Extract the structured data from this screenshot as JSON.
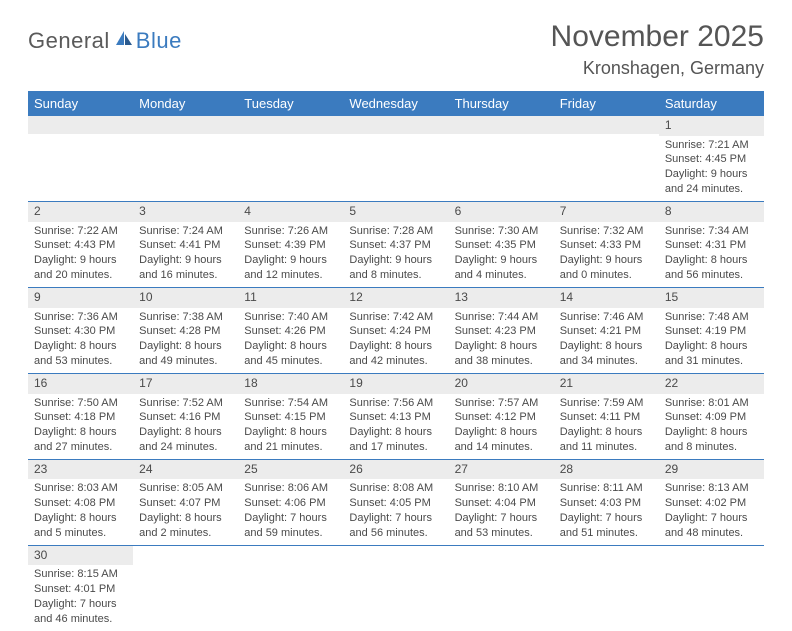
{
  "logo": {
    "word1": "General",
    "word2": "Blue"
  },
  "title": "November 2025",
  "location": "Kronshagen, Germany",
  "colors": {
    "header_bg": "#3b7bbf",
    "header_fg": "#ffffff",
    "daynum_bg": "#ececec",
    "row_border": "#3b7bbf",
    "text": "#4a4a4a",
    "logo_gray": "#5a5a5a",
    "logo_blue": "#3b7bbf"
  },
  "day_headers": [
    "Sunday",
    "Monday",
    "Tuesday",
    "Wednesday",
    "Thursday",
    "Friday",
    "Saturday"
  ],
  "weeks": [
    [
      {
        "n": "",
        "lines": []
      },
      {
        "n": "",
        "lines": []
      },
      {
        "n": "",
        "lines": []
      },
      {
        "n": "",
        "lines": []
      },
      {
        "n": "",
        "lines": []
      },
      {
        "n": "",
        "lines": []
      },
      {
        "n": "1",
        "lines": [
          "Sunrise: 7:21 AM",
          "Sunset: 4:45 PM",
          "Daylight: 9 hours",
          "and 24 minutes."
        ]
      }
    ],
    [
      {
        "n": "2",
        "lines": [
          "Sunrise: 7:22 AM",
          "Sunset: 4:43 PM",
          "Daylight: 9 hours",
          "and 20 minutes."
        ]
      },
      {
        "n": "3",
        "lines": [
          "Sunrise: 7:24 AM",
          "Sunset: 4:41 PM",
          "Daylight: 9 hours",
          "and 16 minutes."
        ]
      },
      {
        "n": "4",
        "lines": [
          "Sunrise: 7:26 AM",
          "Sunset: 4:39 PM",
          "Daylight: 9 hours",
          "and 12 minutes."
        ]
      },
      {
        "n": "5",
        "lines": [
          "Sunrise: 7:28 AM",
          "Sunset: 4:37 PM",
          "Daylight: 9 hours",
          "and 8 minutes."
        ]
      },
      {
        "n": "6",
        "lines": [
          "Sunrise: 7:30 AM",
          "Sunset: 4:35 PM",
          "Daylight: 9 hours",
          "and 4 minutes."
        ]
      },
      {
        "n": "7",
        "lines": [
          "Sunrise: 7:32 AM",
          "Sunset: 4:33 PM",
          "Daylight: 9 hours",
          "and 0 minutes."
        ]
      },
      {
        "n": "8",
        "lines": [
          "Sunrise: 7:34 AM",
          "Sunset: 4:31 PM",
          "Daylight: 8 hours",
          "and 56 minutes."
        ]
      }
    ],
    [
      {
        "n": "9",
        "lines": [
          "Sunrise: 7:36 AM",
          "Sunset: 4:30 PM",
          "Daylight: 8 hours",
          "and 53 minutes."
        ]
      },
      {
        "n": "10",
        "lines": [
          "Sunrise: 7:38 AM",
          "Sunset: 4:28 PM",
          "Daylight: 8 hours",
          "and 49 minutes."
        ]
      },
      {
        "n": "11",
        "lines": [
          "Sunrise: 7:40 AM",
          "Sunset: 4:26 PM",
          "Daylight: 8 hours",
          "and 45 minutes."
        ]
      },
      {
        "n": "12",
        "lines": [
          "Sunrise: 7:42 AM",
          "Sunset: 4:24 PM",
          "Daylight: 8 hours",
          "and 42 minutes."
        ]
      },
      {
        "n": "13",
        "lines": [
          "Sunrise: 7:44 AM",
          "Sunset: 4:23 PM",
          "Daylight: 8 hours",
          "and 38 minutes."
        ]
      },
      {
        "n": "14",
        "lines": [
          "Sunrise: 7:46 AM",
          "Sunset: 4:21 PM",
          "Daylight: 8 hours",
          "and 34 minutes."
        ]
      },
      {
        "n": "15",
        "lines": [
          "Sunrise: 7:48 AM",
          "Sunset: 4:19 PM",
          "Daylight: 8 hours",
          "and 31 minutes."
        ]
      }
    ],
    [
      {
        "n": "16",
        "lines": [
          "Sunrise: 7:50 AM",
          "Sunset: 4:18 PM",
          "Daylight: 8 hours",
          "and 27 minutes."
        ]
      },
      {
        "n": "17",
        "lines": [
          "Sunrise: 7:52 AM",
          "Sunset: 4:16 PM",
          "Daylight: 8 hours",
          "and 24 minutes."
        ]
      },
      {
        "n": "18",
        "lines": [
          "Sunrise: 7:54 AM",
          "Sunset: 4:15 PM",
          "Daylight: 8 hours",
          "and 21 minutes."
        ]
      },
      {
        "n": "19",
        "lines": [
          "Sunrise: 7:56 AM",
          "Sunset: 4:13 PM",
          "Daylight: 8 hours",
          "and 17 minutes."
        ]
      },
      {
        "n": "20",
        "lines": [
          "Sunrise: 7:57 AM",
          "Sunset: 4:12 PM",
          "Daylight: 8 hours",
          "and 14 minutes."
        ]
      },
      {
        "n": "21",
        "lines": [
          "Sunrise: 7:59 AM",
          "Sunset: 4:11 PM",
          "Daylight: 8 hours",
          "and 11 minutes."
        ]
      },
      {
        "n": "22",
        "lines": [
          "Sunrise: 8:01 AM",
          "Sunset: 4:09 PM",
          "Daylight: 8 hours",
          "and 8 minutes."
        ]
      }
    ],
    [
      {
        "n": "23",
        "lines": [
          "Sunrise: 8:03 AM",
          "Sunset: 4:08 PM",
          "Daylight: 8 hours",
          "and 5 minutes."
        ]
      },
      {
        "n": "24",
        "lines": [
          "Sunrise: 8:05 AM",
          "Sunset: 4:07 PM",
          "Daylight: 8 hours",
          "and 2 minutes."
        ]
      },
      {
        "n": "25",
        "lines": [
          "Sunrise: 8:06 AM",
          "Sunset: 4:06 PM",
          "Daylight: 7 hours",
          "and 59 minutes."
        ]
      },
      {
        "n": "26",
        "lines": [
          "Sunrise: 8:08 AM",
          "Sunset: 4:05 PM",
          "Daylight: 7 hours",
          "and 56 minutes."
        ]
      },
      {
        "n": "27",
        "lines": [
          "Sunrise: 8:10 AM",
          "Sunset: 4:04 PM",
          "Daylight: 7 hours",
          "and 53 minutes."
        ]
      },
      {
        "n": "28",
        "lines": [
          "Sunrise: 8:11 AM",
          "Sunset: 4:03 PM",
          "Daylight: 7 hours",
          "and 51 minutes."
        ]
      },
      {
        "n": "29",
        "lines": [
          "Sunrise: 8:13 AM",
          "Sunset: 4:02 PM",
          "Daylight: 7 hours",
          "and 48 minutes."
        ]
      }
    ],
    [
      {
        "n": "30",
        "lines": [
          "Sunrise: 8:15 AM",
          "Sunset: 4:01 PM",
          "Daylight: 7 hours",
          "and 46 minutes."
        ]
      },
      {
        "n": "",
        "lines": []
      },
      {
        "n": "",
        "lines": []
      },
      {
        "n": "",
        "lines": []
      },
      {
        "n": "",
        "lines": []
      },
      {
        "n": "",
        "lines": []
      },
      {
        "n": "",
        "lines": []
      }
    ]
  ]
}
